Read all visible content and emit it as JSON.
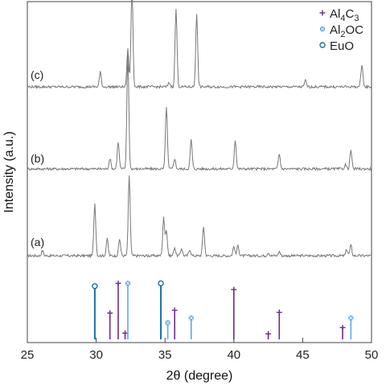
{
  "chart_data": {
    "type": "line",
    "xlabel": "2θ (degree)",
    "ylabel": "Intensity (a.u.)",
    "xlim": [
      25,
      50
    ],
    "xticks": [
      25,
      30,
      35,
      40,
      45,
      50
    ],
    "ytick_labels_shown": false,
    "grid": false,
    "legend_position": "top-right",
    "legend": [
      {
        "key": "al4c3",
        "label_parts": [
          [
            "Al",
            "n"
          ],
          [
            "4",
            "s"
          ],
          [
            "C",
            "n"
          ],
          [
            "3",
            "s"
          ]
        ],
        "marker": "plus",
        "color": "#6a2c91"
      },
      {
        "key": "al2oc",
        "label_parts": [
          [
            "Al",
            "n"
          ],
          [
            "2",
            "s"
          ],
          [
            "OC",
            "n"
          ]
        ],
        "marker": "asterisk",
        "color": "#5fa8e0"
      },
      {
        "key": "euo",
        "label_parts": [
          [
            "EuO",
            "n"
          ]
        ],
        "marker": "circle",
        "color": "#1a6fa0"
      }
    ],
    "series": [
      {
        "label": "(a)",
        "color": "#777777",
        "baseline": 0,
        "peaks": [
          [
            26.1,
            2.5
          ],
          [
            29.9,
            25
          ],
          [
            30.8,
            8
          ],
          [
            31.7,
            8
          ],
          [
            32.4,
            38
          ],
          [
            34.9,
            18
          ],
          [
            35.1,
            12
          ],
          [
            35.7,
            4
          ],
          [
            36.2,
            3.5
          ],
          [
            36.8,
            3
          ],
          [
            37.8,
            14
          ],
          [
            40.0,
            4.5
          ],
          [
            40.3,
            5
          ],
          [
            42.5,
            1.5
          ],
          [
            43.3,
            2
          ],
          [
            48.2,
            3
          ],
          [
            48.5,
            5
          ]
        ]
      },
      {
        "label": "(b)",
        "color": "#777777",
        "baseline": 0,
        "peaks": [
          [
            31.0,
            5
          ],
          [
            31.6,
            13
          ],
          [
            32.3,
            55
          ],
          [
            35.1,
            30
          ],
          [
            35.7,
            5
          ],
          [
            36.9,
            14
          ],
          [
            40.1,
            14
          ],
          [
            43.3,
            7
          ],
          [
            48.1,
            2
          ],
          [
            48.5,
            9
          ]
        ]
      },
      {
        "label": "(c)",
        "color": "#777777",
        "baseline": 0,
        "peaks": [
          [
            30.3,
            7
          ],
          [
            32.3,
            18
          ],
          [
            32.6,
            48
          ],
          [
            35.3,
            2
          ],
          [
            35.8,
            37
          ],
          [
            37.3,
            35
          ],
          [
            45.2,
            3
          ],
          [
            49.3,
            11
          ]
        ]
      }
    ],
    "reference_lines": [
      {
        "phase": "euo",
        "x": 29.9,
        "height": 0.77
      },
      {
        "phase": "euo",
        "x": 34.7,
        "height": 0.81
      },
      {
        "phase": "al4c3",
        "x": 31.0,
        "height": 0.38
      },
      {
        "phase": "al4c3",
        "x": 31.6,
        "height": 0.81
      },
      {
        "phase": "al4c3",
        "x": 32.1,
        "height": 0.09
      },
      {
        "phase": "al4c3",
        "x": 35.7,
        "height": 0.42
      },
      {
        "phase": "al4c3",
        "x": 40.0,
        "height": 0.72
      },
      {
        "phase": "al4c3",
        "x": 42.5,
        "height": 0.08
      },
      {
        "phase": "al4c3",
        "x": 43.3,
        "height": 0.39
      },
      {
        "phase": "al4c3",
        "x": 47.9,
        "height": 0.17
      },
      {
        "phase": "al2oc",
        "x": 32.3,
        "height": 0.81
      },
      {
        "phase": "al2oc",
        "x": 35.2,
        "height": 0.24
      },
      {
        "phase": "al2oc",
        "x": 36.9,
        "height": 0.31
      },
      {
        "phase": "al2oc",
        "x": 48.5,
        "height": 0.31
      }
    ]
  }
}
